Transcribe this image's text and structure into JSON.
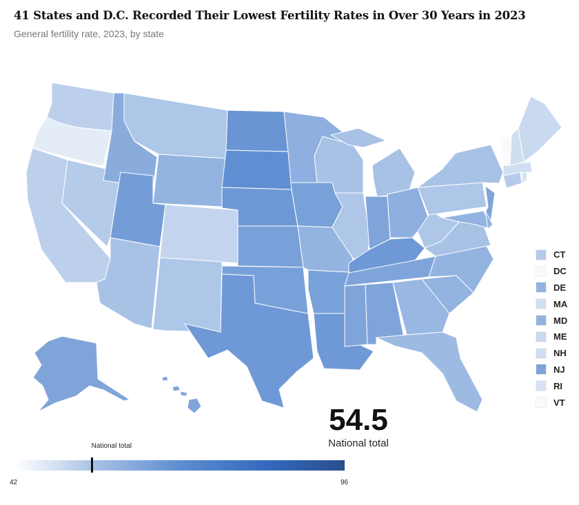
{
  "header": {
    "title": "41 States and D.C. Recorded Their Lowest Fertility Rates in Over 30 Years in 2023",
    "subtitle": "General fertility rate, 2023, by state"
  },
  "national": {
    "value": "54.5",
    "label": "National total",
    "marker_label": "National total",
    "numeric": 54.5
  },
  "scale": {
    "min": 42,
    "max": 96,
    "min_label": "42",
    "max_label": "96",
    "colors": [
      "#ffffff",
      "#a8c2e6",
      "#5a8ad0",
      "#3168bc",
      "#2a4e8c"
    ]
  },
  "small_states_legend": [
    {
      "label": "CT"
    },
    {
      "label": "DC"
    },
    {
      "label": "DE"
    },
    {
      "label": "MA"
    },
    {
      "label": "MD"
    },
    {
      "label": "ME"
    },
    {
      "label": "NH"
    },
    {
      "label": "NJ"
    },
    {
      "label": "RI"
    },
    {
      "label": "VT"
    }
  ],
  "states": {
    "WA": 52,
    "OR": 46,
    "CA": 52,
    "NV": 53,
    "ID": 61,
    "MT": 54,
    "WY": 59,
    "UT": 65,
    "CO": 51,
    "AZ": 55,
    "NM": 54,
    "ND": 67,
    "SD": 69,
    "NE": 66,
    "KS": 64,
    "OK": 64,
    "TX": 66,
    "MN": 60,
    "IA": 64,
    "MO": 59,
    "AR": 64,
    "LA": 66,
    "WI": 55,
    "IL": 54,
    "MI": 55,
    "IN": 63,
    "OH": 60,
    "KY": 66,
    "TN": 63,
    "MS": 63,
    "AL": 63,
    "GA": 58,
    "FL": 57,
    "SC": 59,
    "NC": 59,
    "VA": 55,
    "WV": 54,
    "PA": 54,
    "NY": 55,
    "NJ": 63,
    "DE": 59,
    "MD": 59,
    "CT": 53,
    "MA": 49,
    "RI": 48,
    "VT": 43,
    "NH": 49,
    "ME": 50,
    "DC": 43,
    "AK": 63,
    "HI": 63
  }
}
